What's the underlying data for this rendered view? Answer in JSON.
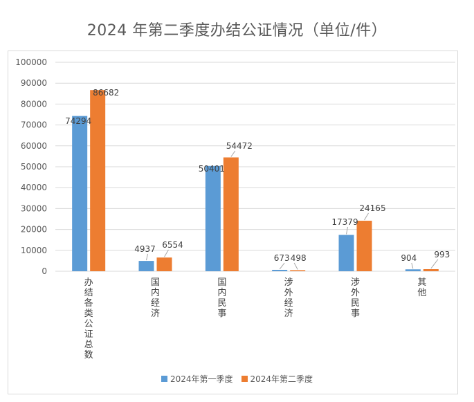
{
  "colors": {
    "q1": "#5b9bd5",
    "q2": "#ed7d31",
    "grid": "#d9d9d9",
    "text": "#595959"
  },
  "chart_data": {
    "type": "bar",
    "title": "2024 年第二季度办结公证情况（单位/件）",
    "categories": [
      "办结各类公证总数",
      "国内经济",
      "国内民事",
      "涉外经济",
      "涉外民事",
      "其他"
    ],
    "series": [
      {
        "name": "2024年第一季度",
        "values": [
          74294,
          4937,
          50401,
          673,
          17379,
          904
        ]
      },
      {
        "name": "2024年第二季度",
        "values": [
          86682,
          6554,
          54472,
          498,
          24165,
          993
        ]
      }
    ],
    "ylim": [
      0,
      100000
    ],
    "yticks": [
      "0",
      "10000",
      "20000",
      "30000",
      "40000",
      "50000",
      "60000",
      "70000",
      "80000",
      "90000",
      "100000"
    ],
    "grid": true,
    "legend_position": "bottom",
    "data_labels": true
  }
}
